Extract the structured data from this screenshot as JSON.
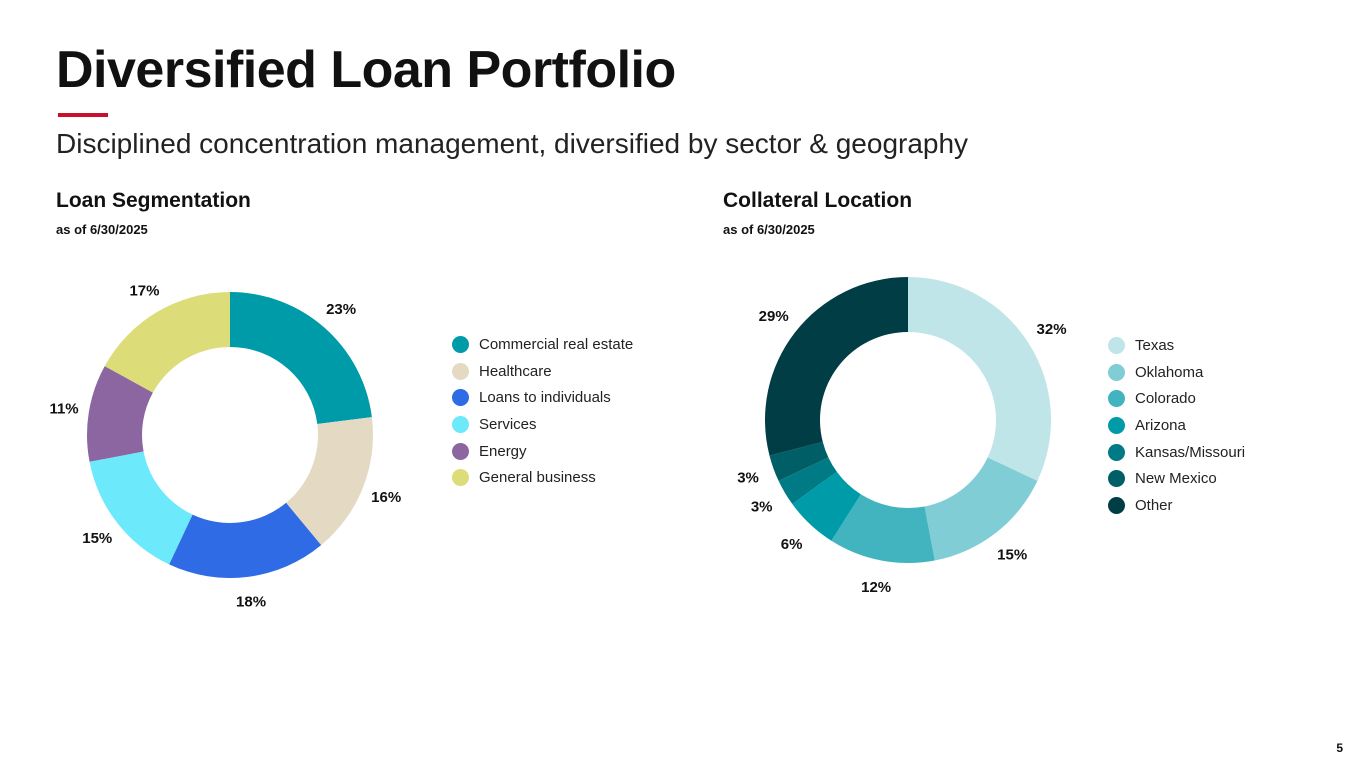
{
  "title": "Diversified Loan Portfolio",
  "subtitle": "Disciplined concentration management, diversified by sector & geography",
  "accent_color": "#c8102e",
  "page_number": "5",
  "chart_data": [
    {
      "type": "pie",
      "donut": true,
      "title": "Loan Segmentation",
      "subtitle": "as of 6/30/2025",
      "legend_position": "right",
      "categories": [
        "Commercial real estate",
        "Healthcare",
        "Loans to individuals",
        "Services",
        "Energy",
        "General business"
      ],
      "values": [
        23,
        16,
        18,
        15,
        11,
        17
      ],
      "labels": [
        "23%",
        "16%",
        "18%",
        "15%",
        "11%",
        "17%"
      ],
      "colors": [
        "#009ba9",
        "#e4dac4",
        "#2f6be4",
        "#6ce9fb",
        "#8c66a0",
        "#dcdc78"
      ]
    },
    {
      "type": "pie",
      "donut": true,
      "title": "Collateral Location",
      "subtitle": "as of 6/30/2025",
      "legend_position": "right",
      "categories": [
        "Texas",
        "Oklahoma",
        "Colorado",
        "Arizona",
        "Kansas/Missouri",
        "New Mexico",
        "Other"
      ],
      "values": [
        32,
        15,
        12,
        6,
        3,
        3,
        29
      ],
      "labels": [
        "32%",
        "15%",
        "12%",
        "6%",
        "3%",
        "3%",
        "29%"
      ],
      "colors": [
        "#c0e5e8",
        "#80cdd5",
        "#42b4c0",
        "#009ba9",
        "#007b85",
        "#005e66",
        "#003d45"
      ]
    }
  ]
}
